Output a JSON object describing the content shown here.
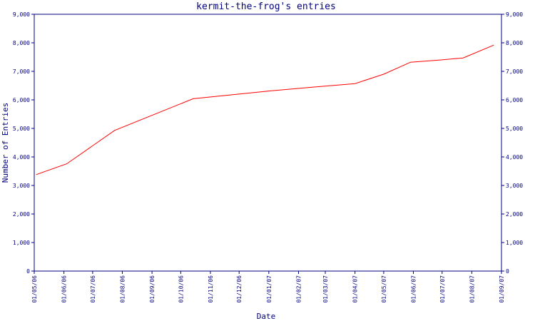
{
  "chart_data": {
    "type": "line",
    "title": "kermit-the-frog's entries",
    "xlabel": "Date",
    "ylabel": "Number of Entries",
    "ylim": [
      0,
      9000
    ],
    "yticks": [
      0,
      1000,
      2000,
      3000,
      4000,
      5000,
      6000,
      7000,
      8000,
      9000
    ],
    "ytick_labels": [
      "0",
      "1,000",
      "2,000",
      "3,000",
      "4,000",
      "5,000",
      "6,000",
      "7,000",
      "8,000",
      "9,000"
    ],
    "xlim": [
      "2006-05-01",
      "2007-09-01"
    ],
    "xticks": [
      "2006-05-01",
      "2006-06-01",
      "2006-07-01",
      "2006-08-01",
      "2006-09-01",
      "2006-10-01",
      "2006-11-01",
      "2006-12-01",
      "2007-01-01",
      "2007-02-01",
      "2007-03-01",
      "2007-04-01",
      "2007-05-01",
      "2007-06-01",
      "2007-07-01",
      "2007-08-01",
      "2007-09-01"
    ],
    "xtick_labels": [
      "01/05/06",
      "01/06/06",
      "01/07/06",
      "01/08/06",
      "01/09/06",
      "01/10/06",
      "01/11/06",
      "01/12/06",
      "01/01/07",
      "01/02/07",
      "01/03/07",
      "01/04/07",
      "01/05/07",
      "01/06/07",
      "01/07/07",
      "01/08/07",
      "01/09/07"
    ],
    "grid": false,
    "axis_color": "#000080",
    "series": [
      {
        "color": "#ff0000",
        "points": [
          {
            "x": "2006-05-03",
            "y": 3380
          },
          {
            "x": "2006-06-04",
            "y": 3760
          },
          {
            "x": "2006-07-24",
            "y": 4930
          },
          {
            "x": "2006-10-14",
            "y": 6040
          },
          {
            "x": "2007-01-01",
            "y": 6310
          },
          {
            "x": "2007-02-14",
            "y": 6440
          },
          {
            "x": "2007-04-01",
            "y": 6570
          },
          {
            "x": "2007-05-01",
            "y": 6900
          },
          {
            "x": "2007-05-29",
            "y": 7320
          },
          {
            "x": "2007-06-30",
            "y": 7400
          },
          {
            "x": "2007-07-23",
            "y": 7470
          },
          {
            "x": "2007-08-24",
            "y": 7920
          }
        ]
      }
    ]
  }
}
